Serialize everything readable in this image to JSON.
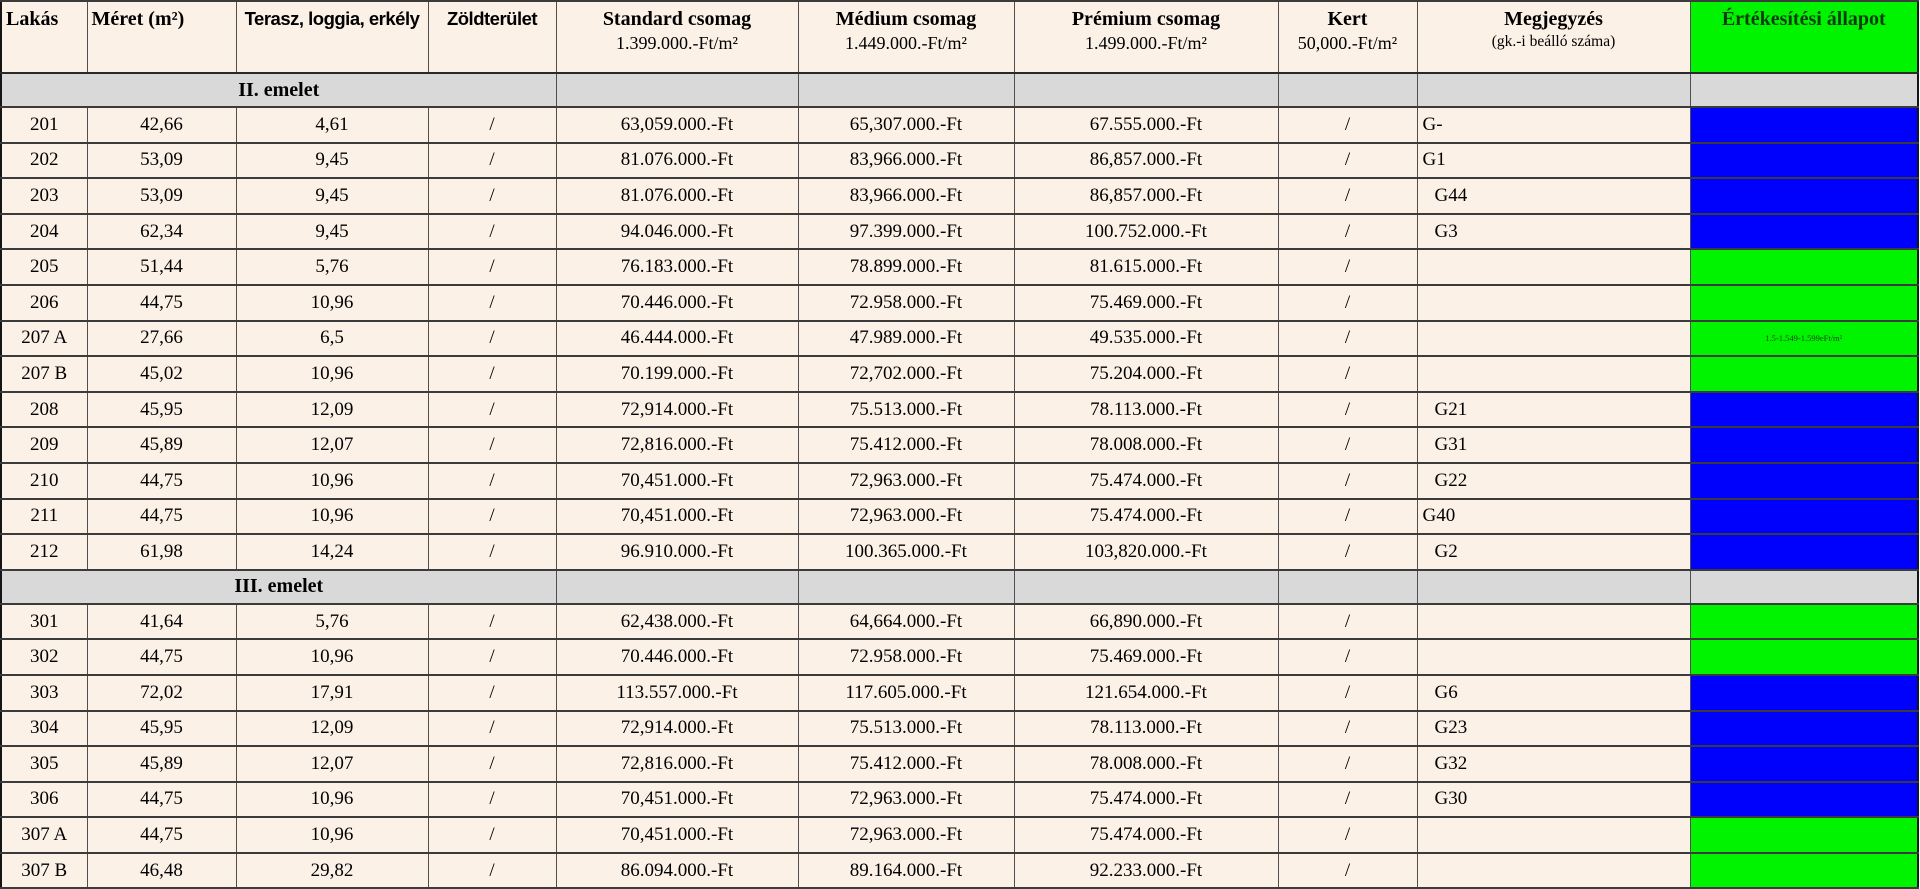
{
  "colors": {
    "cell_bg": "#fcf1e7",
    "section_bg": "#d9d9d9",
    "sold_blue": "#0000fd",
    "available_green": "#00f400"
  },
  "header": {
    "cols": [
      {
        "label": "Lakás",
        "sub": ""
      },
      {
        "label": "Méret (m²)",
        "sub": ""
      },
      {
        "label": "Terasz, loggia, erkély",
        "sub": ""
      },
      {
        "label": "Zöldterület",
        "sub": ""
      },
      {
        "label": "Standard csomag",
        "sub": "1.399.000.-Ft/m²"
      },
      {
        "label": "Médium csomag",
        "sub": "1.449.000.-Ft/m²"
      },
      {
        "label": "Prémium csomag",
        "sub": "1.499.000.-Ft/m²"
      },
      {
        "label": "Kert",
        "sub": "50,000.-Ft/m²"
      },
      {
        "label": "Megjegyzés",
        "sub": "(gk.-i beálló száma)"
      },
      {
        "label": "Értékesítési állapot",
        "sub": ""
      }
    ]
  },
  "sections": [
    {
      "label": "II. emelet",
      "rows": [
        {
          "lakas": "201",
          "meret": "42,66",
          "terasz": "4,61",
          "zold": "/",
          "standard": "63,059.000.-Ft",
          "medium": "65,307.000.-Ft",
          "premium": "67.555.000.-Ft",
          "kert": "/",
          "megjegyzes": "G-",
          "megjegyzes_indent": false,
          "status": "sold",
          "status_note": ""
        },
        {
          "lakas": "202",
          "meret": "53,09",
          "terasz": "9,45",
          "zold": "/",
          "standard": "81.076.000.-Ft",
          "medium": "83,966.000.-Ft",
          "premium": "86,857.000.-Ft",
          "kert": "/",
          "megjegyzes": "G1",
          "megjegyzes_indent": false,
          "status": "sold",
          "status_note": ""
        },
        {
          "lakas": "203",
          "meret": "53,09",
          "terasz": "9,45",
          "zold": "/",
          "standard": "81.076.000.-Ft",
          "medium": "83,966.000.-Ft",
          "premium": "86,857.000.-Ft",
          "kert": "/",
          "megjegyzes": "G44",
          "megjegyzes_indent": true,
          "status": "sold",
          "status_note": ""
        },
        {
          "lakas": "204",
          "meret": "62,34",
          "terasz": "9,45",
          "zold": "/",
          "standard": "94.046.000.-Ft",
          "medium": "97.399.000.-Ft",
          "premium": "100.752.000.-Ft",
          "kert": "/",
          "megjegyzes": "G3",
          "megjegyzes_indent": true,
          "status": "sold",
          "status_note": ""
        },
        {
          "lakas": "205",
          "meret": "51,44",
          "terasz": "5,76",
          "zold": "/",
          "standard": "76.183.000.-Ft",
          "medium": "78.899.000.-Ft",
          "premium": "81.615.000.-Ft",
          "kert": "/",
          "megjegyzes": "",
          "megjegyzes_indent": false,
          "status": "available",
          "status_note": ""
        },
        {
          "lakas": "206",
          "meret": "44,75",
          "terasz": "10,96",
          "zold": "/",
          "standard": "70.446.000.-Ft",
          "medium": "72.958.000.-Ft",
          "premium": "75.469.000.-Ft",
          "kert": "/",
          "megjegyzes": "",
          "megjegyzes_indent": false,
          "status": "available",
          "status_note": ""
        },
        {
          "lakas": "207 A",
          "meret": "27,66",
          "terasz": "6,5",
          "zold": "/",
          "standard": "46.444.000.-Ft",
          "medium": "47.989.000.-Ft",
          "premium": "49.535.000.-Ft",
          "kert": "/",
          "megjegyzes": "",
          "megjegyzes_indent": false,
          "status": "available",
          "status_note": "1.5-1.549-1.599eFt/m²"
        },
        {
          "lakas": "207 B",
          "meret": "45,02",
          "terasz": "10,96",
          "zold": "/",
          "standard": "70.199.000.-Ft",
          "medium": "72,702.000.-Ft",
          "premium": "75.204.000.-Ft",
          "kert": "/",
          "megjegyzes": "",
          "megjegyzes_indent": false,
          "status": "available",
          "status_note": ""
        },
        {
          "lakas": "208",
          "meret": "45,95",
          "terasz": "12,09",
          "zold": "/",
          "standard": "72,914.000.-Ft",
          "medium": "75.513.000.-Ft",
          "premium": "78.113.000.-Ft",
          "kert": "/",
          "megjegyzes": "G21",
          "megjegyzes_indent": true,
          "status": "sold",
          "status_note": ""
        },
        {
          "lakas": "209",
          "meret": "45,89",
          "terasz": "12,07",
          "zold": "/",
          "standard": "72,816.000.-Ft",
          "medium": "75.412.000.-Ft",
          "premium": "78.008.000.-Ft",
          "kert": "/",
          "megjegyzes": "G31",
          "megjegyzes_indent": true,
          "status": "sold",
          "status_note": ""
        },
        {
          "lakas": "210",
          "meret": "44,75",
          "terasz": "10,96",
          "zold": "/",
          "standard": "70,451.000.-Ft",
          "medium": "72,963.000.-Ft",
          "premium": "75.474.000.-Ft",
          "kert": "/",
          "megjegyzes": "G22",
          "megjegyzes_indent": true,
          "status": "sold",
          "status_note": ""
        },
        {
          "lakas": "211",
          "meret": "44,75",
          "terasz": "10,96",
          "zold": "/",
          "standard": "70,451.000.-Ft",
          "medium": "72,963.000.-Ft",
          "premium": "75.474.000.-Ft",
          "kert": "/",
          "megjegyzes": "G40",
          "megjegyzes_indent": false,
          "status": "sold",
          "status_note": ""
        },
        {
          "lakas": "212",
          "meret": "61,98",
          "terasz": "14,24",
          "zold": "/",
          "standard": "96.910.000.-Ft",
          "medium": "100.365.000.-Ft",
          "premium": "103,820.000.-Ft",
          "kert": "/",
          "megjegyzes": "G2",
          "megjegyzes_indent": true,
          "status": "sold",
          "status_note": ""
        }
      ]
    },
    {
      "label": "III. emelet",
      "rows": [
        {
          "lakas": "301",
          "meret": "41,64",
          "terasz": "5,76",
          "zold": "/",
          "standard": "62,438.000.-Ft",
          "medium": "64,664.000.-Ft",
          "premium": "66,890.000.-Ft",
          "kert": "/",
          "megjegyzes": "",
          "megjegyzes_indent": false,
          "status": "available",
          "status_note": ""
        },
        {
          "lakas": "302",
          "meret": "44,75",
          "terasz": "10,96",
          "zold": "/",
          "standard": "70.446.000.-Ft",
          "medium": "72.958.000.-Ft",
          "premium": "75.469.000.-Ft",
          "kert": "/",
          "megjegyzes": "",
          "megjegyzes_indent": false,
          "status": "available",
          "status_note": ""
        },
        {
          "lakas": "303",
          "meret": "72,02",
          "terasz": "17,91",
          "zold": "/",
          "standard": "113.557.000.-Ft",
          "medium": "117.605.000.-Ft",
          "premium": "121.654.000.-Ft",
          "kert": "/",
          "megjegyzes": "G6",
          "megjegyzes_indent": true,
          "status": "sold",
          "status_note": ""
        },
        {
          "lakas": "304",
          "meret": "45,95",
          "terasz": "12,09",
          "zold": "/",
          "standard": "72,914.000.-Ft",
          "medium": "75.513.000.-Ft",
          "premium": "78.113.000.-Ft",
          "kert": "/",
          "megjegyzes": "G23",
          "megjegyzes_indent": true,
          "status": "sold",
          "status_note": ""
        },
        {
          "lakas": "305",
          "meret": "45,89",
          "terasz": "12,07",
          "zold": "/",
          "standard": "72,816.000.-Ft",
          "medium": "75.412.000.-Ft",
          "premium": "78.008.000.-Ft",
          "kert": "/",
          "megjegyzes": "G32",
          "megjegyzes_indent": true,
          "status": "sold",
          "status_note": ""
        },
        {
          "lakas": "306",
          "meret": "44,75",
          "terasz": "10,96",
          "zold": "/",
          "standard": "70,451.000.-Ft",
          "medium": "72,963.000.-Ft",
          "premium": "75.474.000.-Ft",
          "kert": "/",
          "megjegyzes": "G30",
          "megjegyzes_indent": true,
          "status": "sold",
          "status_note": ""
        },
        {
          "lakas": "307 A",
          "meret": "44,75",
          "terasz": "10,96",
          "zold": "/",
          "standard": "70,451.000.-Ft",
          "medium": "72,963.000.-Ft",
          "premium": "75.474.000.-Ft",
          "kert": "/",
          "megjegyzes": "",
          "megjegyzes_indent": false,
          "status": "available",
          "status_note": ""
        },
        {
          "lakas": "307 B",
          "meret": "46,48",
          "terasz": "29,82",
          "zold": "/",
          "standard": "86.094.000.-Ft",
          "medium": "89.164.000.-Ft",
          "premium": "92.233.000.-Ft",
          "kert": "/",
          "megjegyzes": "",
          "megjegyzes_indent": false,
          "status": "available",
          "status_note": ""
        }
      ]
    }
  ]
}
